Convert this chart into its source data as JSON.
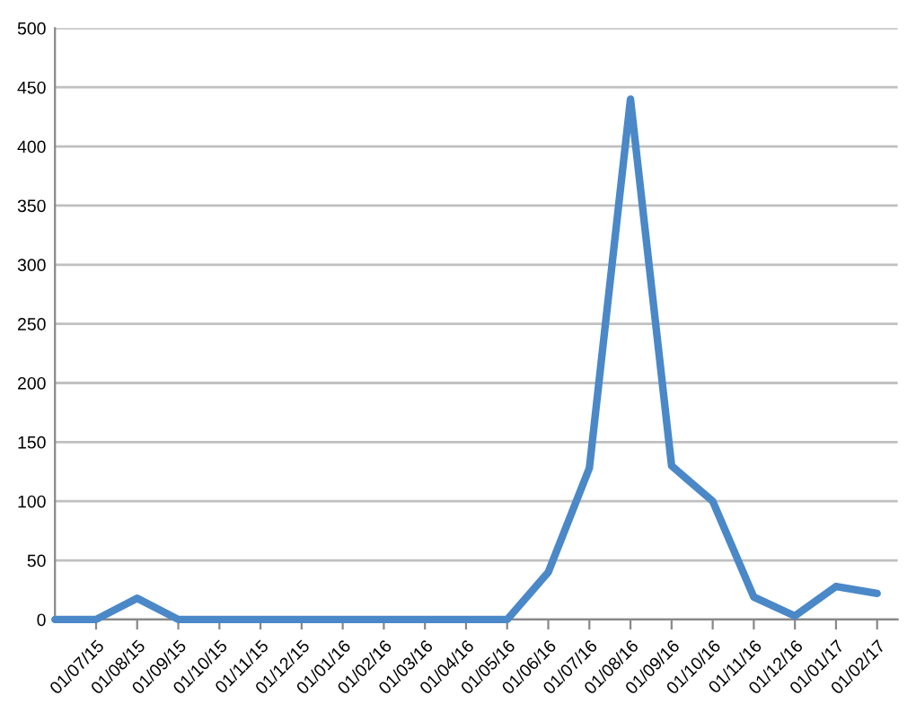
{
  "chart_data": {
    "type": "line",
    "categories": [
      null,
      "01/07/15",
      "01/08/15",
      "01/09/15",
      "01/10/15",
      "01/11/15",
      "01/12/15",
      "01/01/16",
      "01/02/16",
      "01/03/16",
      "01/04/16",
      "01/05/16",
      "01/06/16",
      "01/07/16",
      "01/08/16",
      "01/09/16",
      "01/10/16",
      "01/11/16",
      "01/12/16",
      "01/01/17",
      "01/02/17"
    ],
    "series": [
      {
        "color": "#4a88c8",
        "values": [
          0,
          0,
          18,
          0,
          0,
          0,
          0,
          0,
          0,
          0,
          0,
          0,
          40,
          128,
          440,
          130,
          100,
          19,
          3,
          28,
          22
        ]
      }
    ],
    "ylim": [
      0,
      500
    ],
    "yticks": [
      0,
      50,
      100,
      150,
      200,
      250,
      300,
      350,
      400,
      450,
      500
    ],
    "grid": "y",
    "legend": false,
    "marker": "none",
    "line_style": "solid"
  }
}
